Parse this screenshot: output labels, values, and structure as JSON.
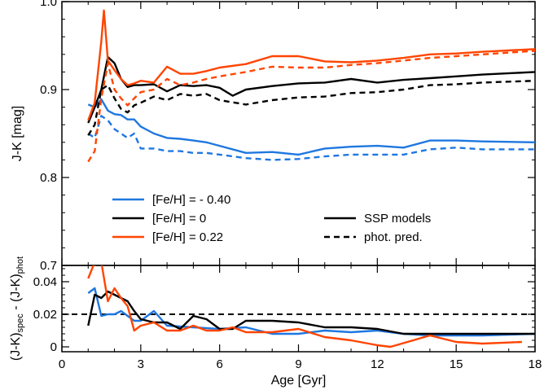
{
  "chart_data": [
    {
      "type": "line",
      "panel": "top",
      "ylabel": "J-K [mag]",
      "xlim": [
        0,
        18
      ],
      "ylim": [
        0.7,
        1.0
      ],
      "yticks": [
        "0.7",
        "0.8",
        "0.9",
        "1.0"
      ],
      "xticks": [
        "0",
        "3",
        "6",
        "9",
        "12",
        "15",
        "18"
      ],
      "grid": false,
      "legend": {
        "metallicity": [
          {
            "label": "[Fe/H] = - 0.40",
            "color": "#1f77e0"
          },
          {
            "label": "[Fe/H] = 0",
            "color": "#000000"
          },
          {
            "label": "[Fe/H] = 0.22",
            "color": "#ff4500"
          }
        ],
        "style": [
          {
            "label": "SSP models",
            "dash": "solid"
          },
          {
            "label": "phot. pred.",
            "dash": "dashed"
          }
        ]
      },
      "series": [
        {
          "metallicity": "-0.40",
          "kind": "SSP models",
          "color": "#1f77e0",
          "dash": "solid",
          "x": [
            1.0,
            1.25,
            1.5,
            1.75,
            2.0,
            2.25,
            2.5,
            2.75,
            3.0,
            3.5,
            4.0,
            4.5,
            5.0,
            5.5,
            6.0,
            7.0,
            8.0,
            9.0,
            10.0,
            11.0,
            12.0,
            13.0,
            14.0,
            15.0,
            16.0,
            18.0
          ],
          "y": [
            0.883,
            0.88,
            0.889,
            0.876,
            0.872,
            0.871,
            0.866,
            0.866,
            0.858,
            0.85,
            0.845,
            0.844,
            0.842,
            0.84,
            0.836,
            0.828,
            0.829,
            0.826,
            0.833,
            0.835,
            0.836,
            0.834,
            0.842,
            0.842,
            0.841,
            0.84
          ]
        },
        {
          "metallicity": "-0.40",
          "kind": "phot. pred.",
          "color": "#1f77e0",
          "dash": "dashed",
          "x": [
            1.0,
            1.25,
            1.5,
            1.75,
            2.0,
            2.25,
            2.5,
            2.75,
            3.0,
            3.5,
            4.0,
            4.5,
            5.0,
            5.5,
            6.0,
            7.0,
            8.0,
            9.0,
            10.0,
            11.0,
            12.0,
            13.0,
            14.0,
            15.0,
            16.0,
            18.0
          ],
          "y": [
            0.85,
            0.845,
            0.87,
            0.865,
            0.855,
            0.85,
            0.845,
            0.85,
            0.833,
            0.833,
            0.83,
            0.83,
            0.828,
            0.828,
            0.826,
            0.822,
            0.82,
            0.821,
            0.824,
            0.826,
            0.826,
            0.826,
            0.832,
            0.834,
            0.832,
            0.832
          ]
        },
        {
          "metallicity": "0",
          "kind": "SSP models",
          "color": "#000000",
          "dash": "solid",
          "x": [
            1.0,
            1.25,
            1.5,
            1.75,
            2.0,
            2.25,
            2.5,
            2.75,
            3.0,
            3.5,
            4.0,
            4.5,
            5.0,
            5.5,
            6.0,
            6.5,
            7.0,
            8.0,
            9.0,
            10.0,
            11.0,
            12.0,
            13.0,
            14.0,
            15.0,
            16.0,
            18.0
          ],
          "y": [
            0.862,
            0.88,
            0.9,
            0.937,
            0.93,
            0.912,
            0.903,
            0.905,
            0.905,
            0.906,
            0.898,
            0.905,
            0.904,
            0.905,
            0.902,
            0.893,
            0.9,
            0.904,
            0.907,
            0.908,
            0.912,
            0.908,
            0.911,
            0.913,
            0.915,
            0.917,
            0.92
          ]
        },
        {
          "metallicity": "0",
          "kind": "phot. pred.",
          "color": "#000000",
          "dash": "dashed",
          "x": [
            1.0,
            1.25,
            1.5,
            1.75,
            2.0,
            2.25,
            2.5,
            2.75,
            3.0,
            3.5,
            4.0,
            4.5,
            5.0,
            5.5,
            6.0,
            7.0,
            8.0,
            9.0,
            10.0,
            11.0,
            12.0,
            13.0,
            14.0,
            15.0,
            16.0,
            18.0
          ],
          "y": [
            0.848,
            0.86,
            0.9,
            0.905,
            0.89,
            0.878,
            0.874,
            0.882,
            0.885,
            0.892,
            0.888,
            0.895,
            0.893,
            0.895,
            0.888,
            0.883,
            0.888,
            0.891,
            0.892,
            0.896,
            0.897,
            0.9,
            0.905,
            0.906,
            0.908,
            0.91
          ]
        },
        {
          "metallicity": "0.22",
          "kind": "SSP models",
          "color": "#ff4500",
          "dash": "solid",
          "x": [
            1.0,
            1.25,
            1.5,
            1.6,
            1.75,
            2.0,
            2.25,
            2.5,
            2.75,
            3.0,
            3.5,
            4.0,
            4.5,
            5.0,
            5.5,
            6.0,
            7.0,
            8.0,
            9.0,
            10.0,
            11.0,
            12.0,
            13.0,
            14.0,
            15.0,
            16.0,
            18.0
          ],
          "y": [
            0.865,
            0.885,
            0.955,
            0.99,
            0.933,
            0.922,
            0.912,
            0.905,
            0.907,
            0.91,
            0.908,
            0.926,
            0.918,
            0.918,
            0.921,
            0.925,
            0.929,
            0.938,
            0.938,
            0.932,
            0.931,
            0.933,
            0.936,
            0.94,
            0.941,
            0.943,
            0.946
          ]
        },
        {
          "metallicity": "0.22",
          "kind": "phot. pred.",
          "color": "#ff4500",
          "dash": "dashed",
          "x": [
            1.0,
            1.25,
            1.5,
            1.75,
            2.0,
            2.25,
            2.5,
            2.75,
            3.0,
            3.5,
            4.0,
            4.5,
            5.0,
            5.5,
            6.0,
            7.0,
            8.0,
            9.0,
            10.0,
            11.0,
            12.0,
            13.0,
            14.0,
            15.0,
            16.0,
            18.0
          ],
          "y": [
            0.818,
            0.83,
            0.89,
            0.93,
            0.9,
            0.89,
            0.882,
            0.89,
            0.897,
            0.9,
            0.912,
            0.905,
            0.908,
            0.912,
            0.915,
            0.92,
            0.926,
            0.925,
            0.925,
            0.928,
            0.93,
            0.933,
            0.936,
            0.938,
            0.94,
            0.944
          ]
        }
      ]
    },
    {
      "type": "line",
      "panel": "bottom",
      "xlabel": "Age [Gyr]",
      "ylabel": "(J-K)spec - (J-K)phot",
      "ylabel_parts": {
        "a": "(J-K)",
        "a_sub": "spec",
        "mid": " - (J-K)",
        "b_sub": "phot"
      },
      "xlim": [
        0,
        18
      ],
      "ylim": [
        -0.003,
        0.05
      ],
      "yticks": [
        "0",
        "0.02",
        "0.04"
      ],
      "xticks": [
        "0",
        "3",
        "6",
        "9",
        "12",
        "15",
        "18"
      ],
      "grid": false,
      "reference": {
        "value": 0.02,
        "dash": "dashed",
        "color": "#000000"
      },
      "series": [
        {
          "metallicity": "-0.40",
          "color": "#1f77e0",
          "x": [
            1.0,
            1.25,
            1.5,
            1.75,
            2.0,
            2.25,
            2.5,
            2.75,
            3.0,
            3.5,
            4.0,
            5.0,
            6.0,
            7.0,
            8.0,
            9.0,
            10.0,
            11.0,
            12.0,
            13.0,
            14.0,
            15.0,
            16.0,
            18.0
          ],
          "y": [
            0.033,
            0.036,
            0.019,
            0.02,
            0.02,
            0.022,
            0.019,
            0.016,
            0.016,
            0.022,
            0.013,
            0.012,
            0.011,
            0.012,
            0.008,
            0.008,
            0.01,
            0.009,
            0.01,
            0.008,
            0.007,
            0.007,
            0.007,
            0.008
          ]
        },
        {
          "metallicity": "0",
          "color": "#000000",
          "x": [
            1.0,
            1.25,
            1.5,
            1.75,
            2.0,
            2.25,
            2.5,
            2.75,
            3.0,
            3.5,
            4.0,
            4.5,
            5.0,
            5.5,
            6.0,
            6.5,
            7.0,
            8.0,
            9.0,
            10.0,
            11.0,
            12.0,
            13.0,
            14.0,
            15.0,
            16.0,
            18.0
          ],
          "y": [
            0.013,
            0.032,
            0.03,
            0.034,
            0.032,
            0.03,
            0.028,
            0.022,
            0.017,
            0.015,
            0.015,
            0.011,
            0.019,
            0.017,
            0.011,
            0.011,
            0.016,
            0.016,
            0.015,
            0.012,
            0.012,
            0.011,
            0.008,
            0.008,
            0.008,
            0.008,
            0.008
          ]
        },
        {
          "metallicity": "0.22",
          "color": "#ff4500",
          "x": [
            1.0,
            1.2,
            1.5,
            1.75,
            2.0,
            2.25,
            2.5,
            2.75,
            3.0,
            3.5,
            4.0,
            4.5,
            5.0,
            5.5,
            6.0,
            6.5,
            7.0,
            8.0,
            9.0,
            10.0,
            11.0,
            12.0,
            12.5,
            14.0,
            15.0,
            16.0,
            17.5
          ],
          "y": [
            0.042,
            0.05,
            0.052,
            0.028,
            0.036,
            0.03,
            0.025,
            0.01,
            0.013,
            0.015,
            0.01,
            0.01,
            0.013,
            0.01,
            0.01,
            0.012,
            0.009,
            0.009,
            0.011,
            0.006,
            0.004,
            0.001,
            0.0,
            0.007,
            0.003,
            0.002,
            0.003
          ]
        }
      ]
    }
  ]
}
